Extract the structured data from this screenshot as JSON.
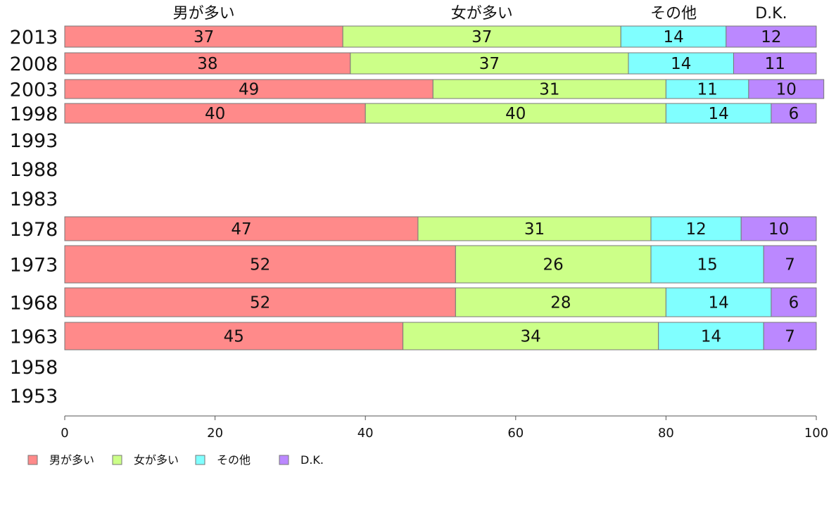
{
  "chart_data": {
    "type": "bar",
    "orientation": "horizontal",
    "stacked": true,
    "categories": [
      "2013",
      "2008",
      "2003",
      "1998",
      "1993",
      "1988",
      "1983",
      "1978",
      "1973",
      "1968",
      "1963",
      "1958",
      "1953"
    ],
    "series": [
      {
        "name": "男が多い",
        "color": "#ff8a8a",
        "values": [
          37,
          38,
          49,
          40,
          null,
          null,
          null,
          47,
          52,
          52,
          45,
          null,
          null
        ]
      },
      {
        "name": "女が多い",
        "color": "#ccff88",
        "values": [
          37,
          37,
          31,
          40,
          null,
          null,
          null,
          31,
          26,
          28,
          34,
          null,
          null
        ]
      },
      {
        "name": "その他",
        "color": "#80ffff",
        "values": [
          14,
          14,
          11,
          14,
          null,
          null,
          null,
          12,
          15,
          14,
          14,
          null,
          null
        ]
      },
      {
        "name": "D.K.",
        "color": "#bb88ff",
        "values": [
          12,
          11,
          10,
          6,
          null,
          null,
          null,
          10,
          7,
          6,
          7,
          null,
          null
        ]
      }
    ],
    "xlim": [
      0,
      100
    ],
    "xticks": [
      0,
      20,
      40,
      60,
      80,
      100
    ],
    "grid": false,
    "legend_position": "bottom-left"
  }
}
